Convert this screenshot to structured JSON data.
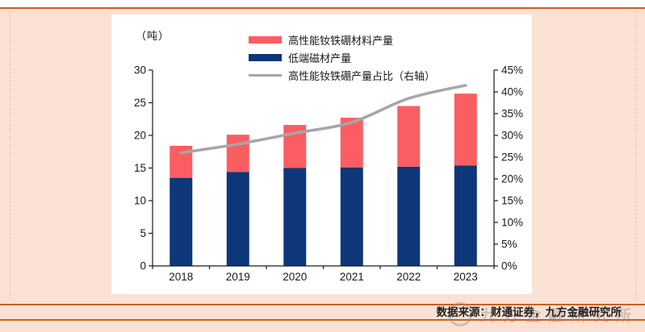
{
  "page": {
    "unit_label": "（吨）",
    "footer": {
      "source": "数据来源：财通证券，九方金融研究所",
      "watermark": "九方金融研究所"
    }
  },
  "chart_data": {
    "type": "bar",
    "subtype": "stacked bars with overlaid line on secondary axis",
    "categories": [
      "2018",
      "2019",
      "2020",
      "2021",
      "2022",
      "2023"
    ],
    "series": [
      {
        "name": "高性能钕铁硼材料产量",
        "type": "bar",
        "color": "#fa5e62",
        "values": [
          4.9,
          5.7,
          6.6,
          7.6,
          9.3,
          11.0
        ]
      },
      {
        "name": "低端磁材产量",
        "type": "bar",
        "color": "#0d3778",
        "values": [
          13.5,
          14.4,
          15.0,
          15.1,
          15.2,
          15.4
        ]
      },
      {
        "name": "高性能钕铁硼产量占比（右轴）",
        "type": "line",
        "axis": "right",
        "color": "#a6a6a6",
        "values": [
          26,
          28,
          30.5,
          33,
          38.5,
          41.5
        ]
      }
    ],
    "left_axis": {
      "min": 0,
      "max": 30,
      "step": 5,
      "label": "（吨）"
    },
    "right_axis": {
      "min": 0,
      "max": 45,
      "step": 5,
      "suffix": "%"
    },
    "legend_position": "top",
    "grid": false
  }
}
